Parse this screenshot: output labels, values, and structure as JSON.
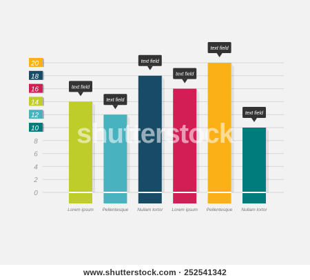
{
  "chart_data": {
    "type": "bar",
    "categories": [
      "Lorem ipsum",
      "Pellentesque",
      "Nullam tortor",
      "Lorem ipsum",
      "Pellentesque",
      "Nullam tortor"
    ],
    "values": [
      14,
      12,
      18,
      16,
      20,
      10
    ],
    "bar_colors": [
      "#bfcd2a",
      "#48b2bf",
      "#184c66",
      "#d11f56",
      "#fbb017",
      "#007c7c"
    ],
    "callout_label": "text field",
    "ylim": [
      0,
      20
    ],
    "y_ticks": [
      {
        "label": "20",
        "value": 20,
        "color": "#fbb017"
      },
      {
        "label": "18",
        "value": 18,
        "color": "#184c66"
      },
      {
        "label": "16",
        "value": 16,
        "color": "#d11f56"
      },
      {
        "label": "14",
        "value": 14,
        "color": "#bfcd2a"
      },
      {
        "label": "12",
        "value": 12,
        "color": "#48b2bf"
      },
      {
        "label": "10",
        "value": 10,
        "color": "#007c7c"
      },
      {
        "label": "8",
        "value": 8,
        "color": ""
      },
      {
        "label": "6",
        "value": 6,
        "color": ""
      },
      {
        "label": "4",
        "value": 4,
        "color": ""
      },
      {
        "label": "2",
        "value": 2,
        "color": ""
      },
      {
        "label": "0",
        "value": 0,
        "color": ""
      }
    ],
    "grid": true
  },
  "watermark": "shutterstock",
  "footer": "www.shutterstock.com · 252541342"
}
